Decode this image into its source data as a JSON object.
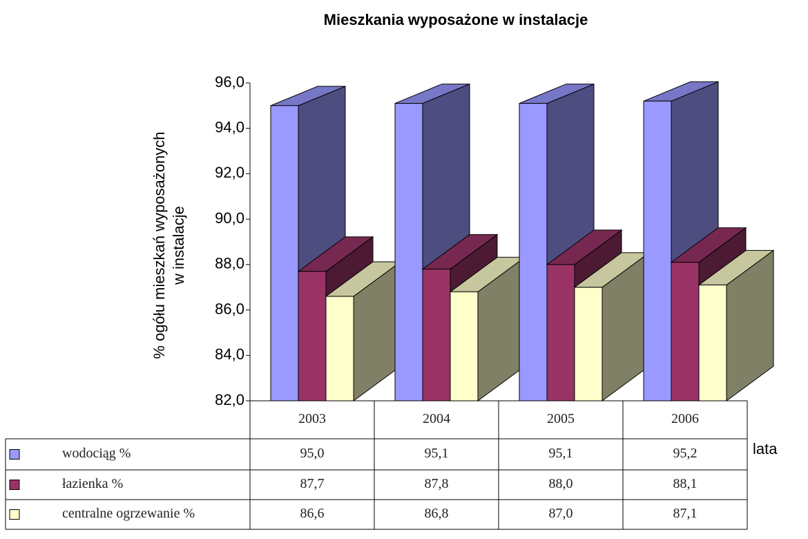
{
  "chart_data": {
    "type": "bar3d",
    "title": "Mieszkania wyposażone w instalacje",
    "ylabel": [
      "% ogółu mieszkań wyposażonych",
      "w instalacje"
    ],
    "xlabel": "lata",
    "categories": [
      "2003",
      "2004",
      "2005",
      "2006"
    ],
    "series": [
      {
        "name": "wodociąg %",
        "color": "#9999ff",
        "values": [
          95.0,
          95.1,
          95.1,
          95.2
        ],
        "value_labels": [
          "95,0",
          "95,1",
          "95,1",
          "95,2"
        ]
      },
      {
        "name": "łazienka %",
        "color": "#993366",
        "values": [
          87.7,
          87.8,
          88.0,
          88.1
        ],
        "value_labels": [
          "87,7",
          "87,8",
          "88,0",
          "88,1"
        ]
      },
      {
        "name": "centralne ogrzewanie %",
        "color": "#ffffcc",
        "values": [
          86.6,
          86.8,
          87.0,
          87.1
        ],
        "value_labels": [
          "86,6",
          "86,8",
          "87,0",
          "87,1"
        ]
      }
    ],
    "ylim": [
      82,
      96
    ],
    "yticks": [
      {
        "value": 82,
        "label": "82,0"
      },
      {
        "value": 84,
        "label": "84,0"
      },
      {
        "value": 86,
        "label": "86,0"
      },
      {
        "value": 88,
        "label": "88,0"
      },
      {
        "value": 90,
        "label": "90,0"
      },
      {
        "value": 92,
        "label": "92,0"
      },
      {
        "value": 94,
        "label": "94,0"
      },
      {
        "value": 96,
        "label": "96,0"
      }
    ]
  }
}
